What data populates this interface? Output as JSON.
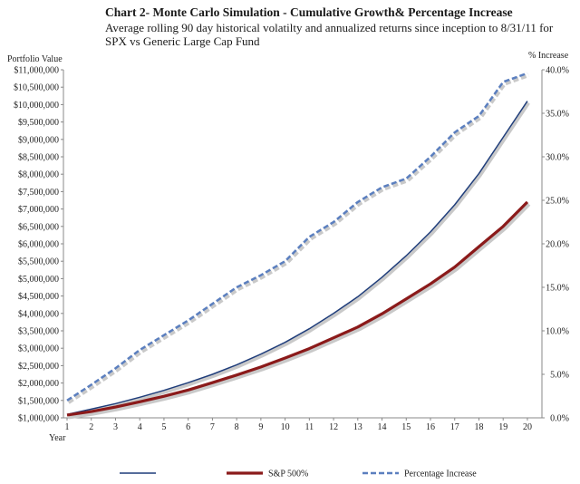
{
  "chart_data": {
    "type": "line",
    "title": "Chart 2- Monte Carlo Simulation -  Cumulative Growth& Percentage Increase",
    "subtitle": "Average rolling 90 day  historical volatilty and annualized returns since inception to 8/31/11 for SPX vs Generic Large Cap Fund",
    "xlabel": "Year",
    "ylabel_left": "Portfolio Value",
    "ylabel_right": "% Increase",
    "x": [
      1,
      2,
      3,
      4,
      5,
      6,
      7,
      8,
      9,
      10,
      11,
      12,
      13,
      14,
      15,
      16,
      17,
      18,
      19,
      20
    ],
    "y_left_ticks": [
      "$1,000,000",
      "$1,500,000",
      "$2,000,000",
      "$2,500,000",
      "$3,000,000",
      "$3,500,000",
      "$4,000,000",
      "$4,500,000",
      "$5,000,000",
      "$5,500,000",
      "$6,000,000",
      "$6,500,000",
      "$7,000,000",
      "$7,500,000",
      "$8,000,000",
      "$8,500,000",
      "$9,000,000",
      "$9,500,000",
      "$10,000,000",
      "$10,500,000",
      "$11,000,000"
    ],
    "y_right_ticks": [
      "0.0%",
      "5.0%",
      "10.0%",
      "15.0%",
      "20.0%",
      "25.0%",
      "30.0%",
      "35.0%",
      "40.0%"
    ],
    "ylim_left": [
      1000000,
      11000000
    ],
    "ylim_right": [
      0,
      40
    ],
    "grid": false,
    "legend_position": "bottom",
    "series": [
      {
        "name": "",
        "axis": "left",
        "color": "#1f3d7a",
        "style": "solid",
        "values": [
          1100000,
          1250000,
          1410000,
          1590000,
          1790000,
          2010000,
          2250000,
          2520000,
          2830000,
          3170000,
          3560000,
          4000000,
          4480000,
          5040000,
          5660000,
          6340000,
          7120000,
          8020000,
          9060000,
          10100000
        ]
      },
      {
        "name": "S&P 500%",
        "axis": "left",
        "color": "#8b1a1a",
        "style": "solid-thick",
        "values": [
          1080000,
          1180000,
          1310000,
          1460000,
          1620000,
          1800000,
          2010000,
          2230000,
          2460000,
          2720000,
          2990000,
          3300000,
          3610000,
          3990000,
          4420000,
          4850000,
          5330000,
          5920000,
          6500000,
          7200000
        ]
      },
      {
        "name": "Percentage Increase",
        "axis": "right",
        "color": "#5b7fbf",
        "style": "dashed",
        "values": [
          2.0,
          3.8,
          5.7,
          7.8,
          9.5,
          11.2,
          13.1,
          15.0,
          16.4,
          18.0,
          20.8,
          22.5,
          24.8,
          26.5,
          27.5,
          30.0,
          32.8,
          34.7,
          38.6,
          39.6
        ]
      }
    ]
  }
}
